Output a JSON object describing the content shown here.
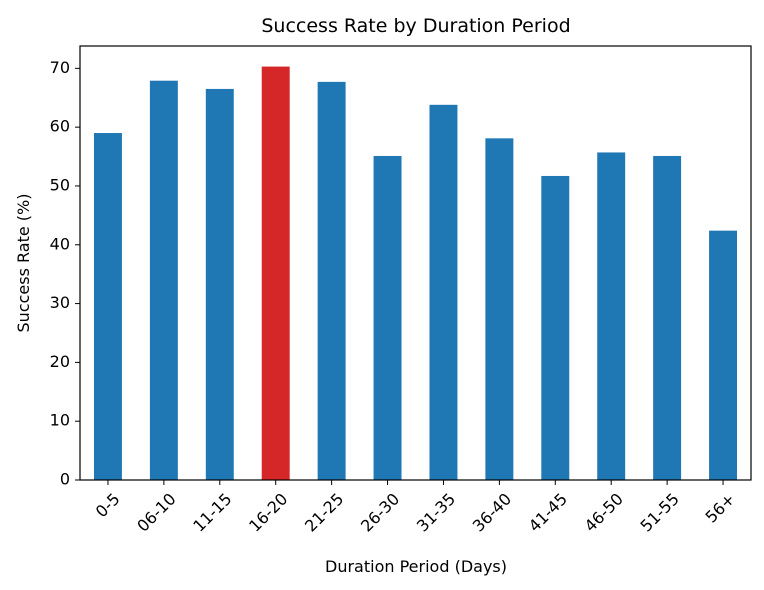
{
  "chart_data": {
    "type": "bar",
    "title": "Success Rate by Duration Period",
    "xlabel": "Duration Period (Days)",
    "ylabel": "Success Rate (%)",
    "categories": [
      "0-5",
      "06-10",
      "11-15",
      "16-20",
      "21-25",
      "26-30",
      "31-35",
      "36-40",
      "41-45",
      "46-50",
      "51-55",
      "56+"
    ],
    "values": [
      59.0,
      67.9,
      66.5,
      70.3,
      67.7,
      55.1,
      63.8,
      58.1,
      51.7,
      55.7,
      55.1,
      42.4
    ],
    "highlight_category": "16-20",
    "ylim": [
      0,
      73.8
    ],
    "yticks": [
      0,
      10,
      20,
      30,
      40,
      50,
      60,
      70
    ],
    "grid": false,
    "colors": {
      "bar": "#1f77b4",
      "highlight": "#d62728",
      "axis": "#000000"
    }
  }
}
